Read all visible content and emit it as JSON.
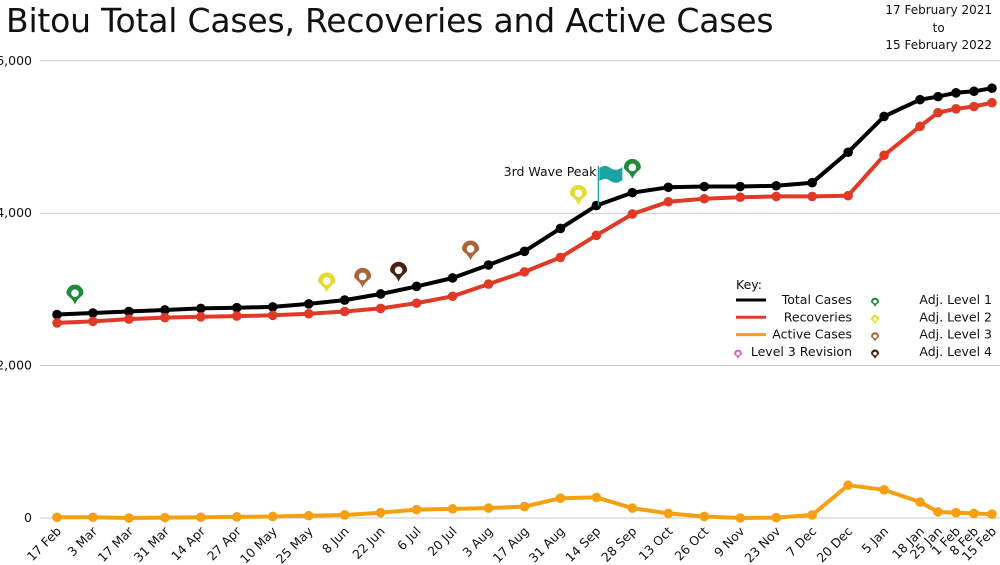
{
  "title": "Bitou Total Cases, Recoveries and Active Cases",
  "date_range": {
    "from": "17 February 2021",
    "to_word": "to",
    "to": "15 February 2022"
  },
  "colors": {
    "total": "#000000",
    "recoveries": "#e03a26",
    "active": "#f5a012",
    "level1": "#1f8a3c",
    "level2": "#e6da2e",
    "level3": "#a8673a",
    "level4": "#4a210c",
    "revision": "#d966c2",
    "flag": "#1aa3a3",
    "grid": "#c8c8c8"
  },
  "chart_data": {
    "type": "line",
    "x_tick_labels": [
      "17 Feb",
      "3 Mar",
      "17 Mar",
      "31 Mar",
      "14 Apr",
      "27 Apr",
      "10 May",
      "25 May",
      "8 Jun",
      "22 Jun",
      "6 Jul",
      "20 Jul",
      "3 Aug",
      "17 Aug",
      "31 Aug",
      "14 Sep",
      "28 Sep",
      "13 Oct",
      "26 Oct",
      "9 Nov",
      "23 Nov",
      "7 Dec",
      "20 Dec",
      "5 Jan",
      "18 Jan",
      "25 Jan",
      "1 Feb",
      "8 Feb",
      "15 Feb"
    ],
    "x_tick_indices": [
      0,
      2,
      4,
      6,
      8,
      10,
      12,
      14,
      16,
      18,
      20,
      22,
      24,
      26,
      28,
      30,
      32,
      34,
      36,
      38,
      40,
      42,
      44,
      46,
      48,
      49,
      50,
      51,
      52
    ],
    "y_ticks": [
      0,
      2000,
      4000,
      6000
    ],
    "y_tick_labels": [
      "0",
      "2,000",
      "4,000",
      "6,000"
    ],
    "ylim": [
      0,
      6000
    ],
    "grid": "horizontal",
    "legend": "right",
    "series": [
      {
        "name": "Total Cases",
        "color_key": "total",
        "values": [
          [
            0,
            2670
          ],
          [
            2,
            2690
          ],
          [
            4,
            2710
          ],
          [
            6,
            2730
          ],
          [
            8,
            2750
          ],
          [
            10,
            2760
          ],
          [
            12,
            2770
          ],
          [
            14,
            2810
          ],
          [
            16,
            2860
          ],
          [
            18,
            2940
          ],
          [
            20,
            3040
          ],
          [
            22,
            3150
          ],
          [
            24,
            3320
          ],
          [
            26,
            3500
          ],
          [
            28,
            3800
          ],
          [
            30,
            4100
          ],
          [
            32,
            4270
          ],
          [
            34,
            4340
          ],
          [
            36,
            4350
          ],
          [
            38,
            4350
          ],
          [
            40,
            4360
          ],
          [
            42,
            4400
          ],
          [
            44,
            4800
          ],
          [
            46,
            5270
          ],
          [
            48,
            5490
          ],
          [
            49,
            5530
          ],
          [
            50,
            5580
          ],
          [
            51,
            5600
          ],
          [
            52,
            5640
          ]
        ]
      },
      {
        "name": "Recoveries",
        "color_key": "recoveries",
        "values": [
          [
            0,
            2560
          ],
          [
            2,
            2580
          ],
          [
            4,
            2610
          ],
          [
            6,
            2630
          ],
          [
            8,
            2640
          ],
          [
            10,
            2650
          ],
          [
            12,
            2660
          ],
          [
            14,
            2680
          ],
          [
            16,
            2710
          ],
          [
            18,
            2750
          ],
          [
            20,
            2820
          ],
          [
            22,
            2910
          ],
          [
            24,
            3070
          ],
          [
            26,
            3230
          ],
          [
            28,
            3420
          ],
          [
            30,
            3710
          ],
          [
            32,
            3990
          ],
          [
            34,
            4150
          ],
          [
            36,
            4190
          ],
          [
            38,
            4210
          ],
          [
            40,
            4220
          ],
          [
            42,
            4220
          ],
          [
            44,
            4230
          ],
          [
            46,
            4760
          ],
          [
            48,
            5140
          ],
          [
            49,
            5320
          ],
          [
            50,
            5370
          ],
          [
            51,
            5400
          ],
          [
            52,
            5450
          ]
        ]
      },
      {
        "name": "Active Cases",
        "color_key": "active",
        "values": [
          [
            0,
            10
          ],
          [
            2,
            10
          ],
          [
            4,
            0
          ],
          [
            6,
            5
          ],
          [
            8,
            10
          ],
          [
            10,
            15
          ],
          [
            12,
            20
          ],
          [
            14,
            30
          ],
          [
            16,
            40
          ],
          [
            18,
            70
          ],
          [
            20,
            110
          ],
          [
            22,
            120
          ],
          [
            24,
            130
          ],
          [
            26,
            150
          ],
          [
            28,
            260
          ],
          [
            30,
            270
          ],
          [
            32,
            130
          ],
          [
            34,
            60
          ],
          [
            36,
            20
          ],
          [
            38,
            0
          ],
          [
            40,
            5
          ],
          [
            42,
            40
          ],
          [
            44,
            430
          ],
          [
            46,
            370
          ],
          [
            48,
            210
          ],
          [
            49,
            80
          ],
          [
            50,
            70
          ],
          [
            51,
            60
          ],
          [
            52,
            50
          ]
        ]
      }
    ],
    "annotations": [
      {
        "text": "3rd Wave Peak",
        "x_index": 30
      }
    ],
    "markers": [
      {
        "level_key": "level1",
        "x_index": 1,
        "value": 2800
      },
      {
        "level_key": "level2",
        "x_index": 15,
        "value": 2960
      },
      {
        "level_key": "level3",
        "x_index": 17,
        "value": 3020
      },
      {
        "level_key": "level4",
        "x_index": 19,
        "value": 3100
      },
      {
        "level_key": "level3",
        "x_index": 23,
        "value": 3380
      },
      {
        "level_key": "level2",
        "x_index": 29,
        "value": 4110
      },
      {
        "level_key": "level1",
        "x_index": 32,
        "value": 4450
      }
    ]
  },
  "legend": {
    "title": "Key:",
    "lines": [
      {
        "label": "Total Cases",
        "color_key": "total"
      },
      {
        "label": "Recoveries",
        "color_key": "recoveries"
      },
      {
        "label": "Active Cases",
        "color_key": "active"
      }
    ],
    "revision_label": "Level 3 Revision",
    "levels": [
      {
        "label": "Adj. Level 1",
        "color_key": "level1"
      },
      {
        "label": "Adj. Level 2",
        "color_key": "level2"
      },
      {
        "label": "Adj. Level 3",
        "color_key": "level3"
      },
      {
        "label": "Adj. Level 4",
        "color_key": "level4"
      }
    ]
  }
}
